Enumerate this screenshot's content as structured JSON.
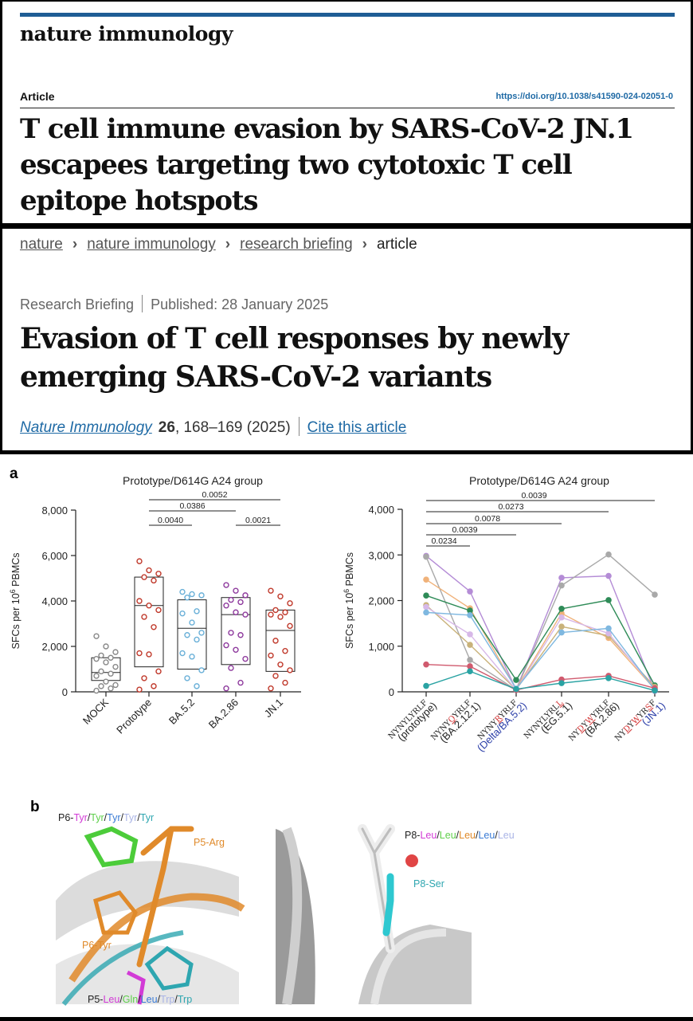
{
  "paper": {
    "journal": "nature immunology",
    "section": "Article",
    "doi": "https://doi.org/10.1038/s41590-024-02051-0",
    "title": "T cell immune evasion by SARS-CoV-2 JN.1 escapees targeting two cytotoxic T cell epitope hotspots"
  },
  "briefing": {
    "breadcrumb": [
      "nature",
      "nature immunology",
      "research briefing",
      "article"
    ],
    "type": "Research Briefing",
    "published": "Published: 28 January 2025",
    "headline": "Evasion of T cell responses by newly emerging SARS-CoV-2 variants",
    "journal": "Nature Immunology",
    "volume": "26",
    "pages_year": ", 168–169 (2025)",
    "cite_label": "Cite this article"
  },
  "figure": {
    "panel_a": "a",
    "panel_b": "b",
    "b_labels": {
      "p6_prefix": "P6-",
      "p6_list": [
        "Tyr",
        "Tyr",
        "Tyr",
        "Tyr",
        "Tyr"
      ],
      "p6_colors": [
        "#d23bd6",
        "#5fcf4b",
        "#3a7bd5",
        "#aab4e6",
        "#2ea6b0"
      ],
      "p5_arg": "P5-Arg",
      "p6_tyr": "P6-Tyr",
      "p5_prefix": "P5-",
      "p5_list": [
        "Leu",
        "Gln",
        "Leu",
        "Trp",
        "Trp"
      ],
      "p5_colors": [
        "#d23bd6",
        "#5fcf4b",
        "#3a7bd5",
        "#aab4e6",
        "#2ea6b0"
      ],
      "p8_prefix": "P8-",
      "p8_list": [
        "Leu",
        "Leu",
        "Leu",
        "Leu",
        "Leu"
      ],
      "p8_colors": [
        "#d23bd6",
        "#5fcf4b",
        "#e08a2a",
        "#3a7bd5",
        "#aab4e6"
      ],
      "p8_ser": "P8-Ser"
    }
  },
  "chart_data": [
    {
      "type": "scatter",
      "title": "Prototype/D614G A24 group",
      "ylabel": "SFCs per 10^6 PBMCs",
      "ylim": [
        0,
        8000
      ],
      "yticks": [
        "0",
        "2,000",
        "4,000",
        "6,000",
        "8,000"
      ],
      "categories": [
        "MOCK",
        "Prototype",
        "BA.5.2",
        "BA.2.86",
        "JN.1"
      ],
      "colors": [
        "#888888",
        "#c0392b",
        "#6ab0d8",
        "#8e3a9d",
        "#c0392b"
      ],
      "points": [
        [
          2450,
          2000,
          1750,
          1600,
          1500,
          1450,
          1300,
          1100,
          900,
          800,
          700,
          450,
          300,
          250,
          150,
          50
        ],
        [
          5750,
          5350,
          5200,
          5050,
          4900,
          4000,
          3800,
          3600,
          3300,
          2850,
          1700,
          1650,
          900,
          600,
          250,
          100
        ],
        [
          4400,
          4300,
          4250,
          4150,
          3550,
          3450,
          3050,
          2600,
          2500,
          2300,
          1700,
          1550,
          950,
          600,
          250
        ],
        [
          4700,
          4450,
          4250,
          4050,
          3950,
          3800,
          3500,
          3400,
          2600,
          2500,
          2050,
          1850,
          1450,
          1050,
          400,
          150
        ],
        [
          4450,
          4200,
          3900,
          3600,
          3500,
          3400,
          3300,
          2900,
          2250,
          1800,
          1600,
          1200,
          950,
          700,
          400,
          150
        ]
      ],
      "box": [
        [
          500,
          850,
          1500
        ],
        [
          1100,
          3800,
          5050
        ],
        [
          1000,
          2800,
          4050
        ],
        [
          1200,
          3400,
          4150
        ],
        [
          900,
          2700,
          3600
        ]
      ],
      "comparisons": [
        {
          "from": 1,
          "to": 4,
          "label": "0.0052"
        },
        {
          "from": 1,
          "to": 3,
          "label": "0.0386"
        },
        {
          "from": 1,
          "to": 2,
          "label": "0.0040"
        },
        {
          "from": 3,
          "to": 4,
          "label": "0.0021"
        }
      ]
    },
    {
      "type": "line",
      "title": "Prototype/D614G A24 group",
      "ylabel": "SFCs per 10^6 PBMCs",
      "ylim": [
        0,
        4000
      ],
      "yticks": [
        "0",
        "1,000",
        "2,000",
        "3,000",
        "4,000"
      ],
      "categories": [
        {
          "seq": "NYNYLYRLF",
          "mut": [],
          "variant": "(prototype)",
          "vcolor": "#222222"
        },
        {
          "seq": "NYNYQYRLF",
          "mut": [
            4
          ],
          "variant": "(BA.2.12.1)",
          "vcolor": "#222222"
        },
        {
          "seq": "NYNYRYRLF",
          "mut": [
            4
          ],
          "variant": "(Delta/BA.5.2)",
          "vcolor": "#2b3ea8"
        },
        {
          "seq": "NYNYLYRLL",
          "mut": [
            8
          ],
          "variant": "(EG.5.1)",
          "vcolor": "#222222"
        },
        {
          "seq": "NYDYWYRLF",
          "mut": [
            2,
            4
          ],
          "variant": "(BA.2.86)",
          "vcolor": "#222222"
        },
        {
          "seq": "NYDYWYRSF",
          "mut": [
            2,
            4,
            7
          ],
          "variant": "(JN.1)",
          "vcolor": "#2b3ea8"
        }
      ],
      "series": [
        {
          "color": "#b48cd6",
          "values": [
            2980,
            2200,
            50,
            2500,
            2540,
            20
          ]
        },
        {
          "color": "#a9a9a9",
          "values": [
            2960,
            700,
            40,
            2330,
            3010,
            2130
          ]
        },
        {
          "color": "#f0b27a",
          "values": [
            2460,
            1830,
            60,
            1720,
            1180,
            60
          ]
        },
        {
          "color": "#2e8b57",
          "values": [
            2110,
            1780,
            260,
            1820,
            2010,
            140
          ]
        },
        {
          "color": "#c9b27a",
          "values": [
            1900,
            1030,
            50,
            1430,
            1230,
            110
          ]
        },
        {
          "color": "#d7b8e8",
          "values": [
            1860,
            1260,
            40,
            1630,
            1280,
            60
          ]
        },
        {
          "color": "#7fb8e0",
          "values": [
            1740,
            1680,
            70,
            1300,
            1390,
            40
          ]
        },
        {
          "color": "#d05a6e",
          "values": [
            600,
            560,
            40,
            270,
            350,
            80
          ]
        },
        {
          "color": "#2aa3a3",
          "values": [
            130,
            450,
            60,
            190,
            300,
            30
          ]
        }
      ],
      "comparisons": [
        {
          "from": 0,
          "to": 5,
          "label": "0.0039"
        },
        {
          "from": 0,
          "to": 4,
          "label": "0.0273"
        },
        {
          "from": 0,
          "to": 3,
          "label": "0.0078"
        },
        {
          "from": 0,
          "to": 2,
          "label": "0.0039"
        },
        {
          "from": 0,
          "to": 1,
          "label": "0.0234"
        }
      ]
    }
  ]
}
